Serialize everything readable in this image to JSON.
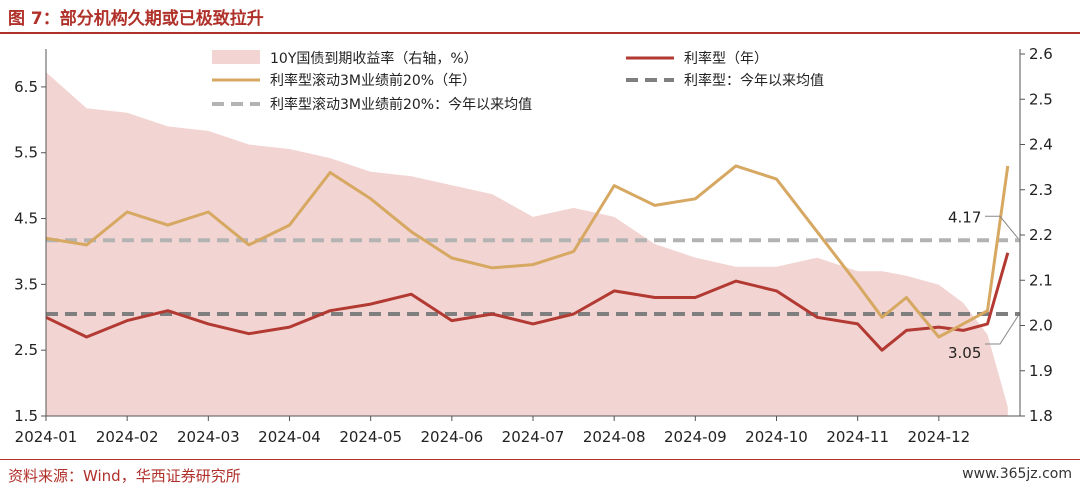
{
  "figure": {
    "title": "图 7：部分机构久期或已极致拉升",
    "source": "资料来源：Wind，华西证券研究所",
    "watermark": "www.365jz.com"
  },
  "chart_data": {
    "type": "line",
    "title": "",
    "xlabel": "",
    "ylabel_left": "",
    "ylabel_right": "",
    "x_ticks": [
      "2024-01",
      "2024-02",
      "2024-03",
      "2024-04",
      "2024-05",
      "2024-06",
      "2024-07",
      "2024-08",
      "2024-09",
      "2024-10",
      "2024-11",
      "2024-12"
    ],
    "y_left_ticks": [
      "1.5",
      "2.5",
      "3.5",
      "4.5",
      "5.5",
      "6.5"
    ],
    "y_right_ticks": [
      "1.8",
      "1.9",
      "2.0",
      "2.1",
      "2.2",
      "2.3",
      "2.4",
      "2.5",
      "2.6"
    ],
    "ylim_left": [
      1.5,
      7.0
    ],
    "ylim_right": [
      1.8,
      2.6
    ],
    "grid": false,
    "legend_position": "top",
    "month_index": [
      0,
      0.5,
      1,
      1.5,
      2,
      2.5,
      3,
      3.5,
      4,
      4.5,
      5,
      5.5,
      6,
      6.5,
      7,
      7.5,
      8,
      8.5,
      9,
      9.5,
      10,
      10.3,
      10.6,
      11,
      11.3,
      11.6,
      11.85
    ],
    "series": [
      {
        "name": "10Y国债到期收益率（右轴，%）",
        "kind": "area",
        "axis": "right",
        "color": "#f2d4d2",
        "values": [
          2.56,
          2.48,
          2.47,
          2.44,
          2.43,
          2.4,
          2.39,
          2.37,
          2.34,
          2.33,
          2.31,
          2.29,
          2.24,
          2.26,
          2.24,
          2.18,
          2.15,
          2.13,
          2.13,
          2.15,
          2.12,
          2.12,
          2.11,
          2.09,
          2.05,
          1.98,
          1.82
        ]
      },
      {
        "name": "利率型（年）",
        "kind": "line",
        "axis": "left",
        "color": "#b23a32",
        "values": [
          3.0,
          2.7,
          2.95,
          3.1,
          2.9,
          2.75,
          2.85,
          3.1,
          3.2,
          3.35,
          2.95,
          3.05,
          2.9,
          3.05,
          3.4,
          3.3,
          3.3,
          3.55,
          3.4,
          3.0,
          2.9,
          2.5,
          2.8,
          2.85,
          2.8,
          2.9,
          3.98
        ]
      },
      {
        "name": "利率型滚动3M业绩前20%（年）",
        "kind": "line",
        "axis": "left",
        "color": "#d6a862",
        "values": [
          4.2,
          4.1,
          4.6,
          4.4,
          4.6,
          4.1,
          4.4,
          5.2,
          4.8,
          4.3,
          3.9,
          3.75,
          3.8,
          4.0,
          5.0,
          4.7,
          4.8,
          5.3,
          5.1,
          4.3,
          3.5,
          3.0,
          3.3,
          2.7,
          2.9,
          3.1,
          5.3
        ]
      },
      {
        "name": "利率型：今年以来均值",
        "kind": "dashed",
        "axis": "left",
        "color": "#7f7f7f",
        "values": [
          3.05
        ]
      },
      {
        "name": "利率型滚动3M业绩前20%：今年以来均值",
        "kind": "dashed",
        "axis": "left",
        "color": "#b3b3b3",
        "values": [
          4.17
        ]
      }
    ],
    "annotations": [
      {
        "text": "4.17",
        "target_value": 4.17
      },
      {
        "text": "3.05",
        "target_value": 3.05
      }
    ]
  }
}
